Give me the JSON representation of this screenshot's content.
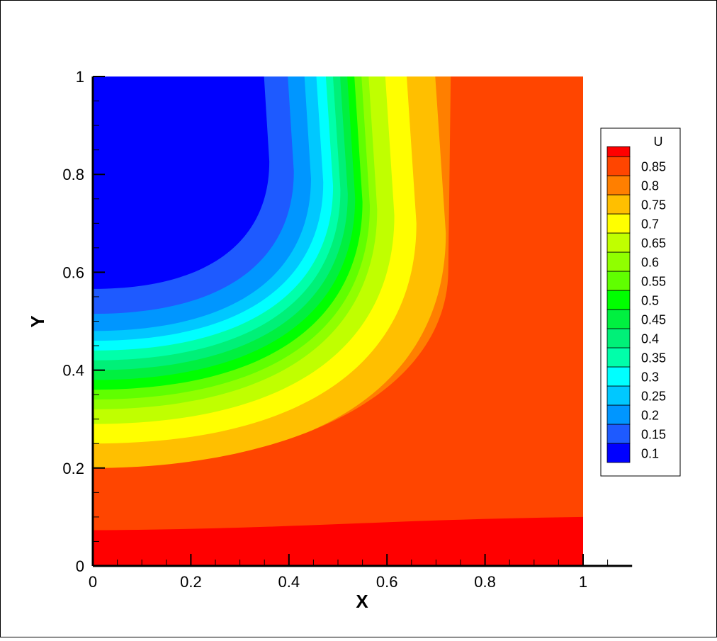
{
  "chart_data": {
    "type": "contour",
    "xlabel": "X",
    "ylabel": "Y",
    "xlim": [
      0,
      1.1
    ],
    "ylim": [
      0,
      1
    ],
    "xticks": [
      0,
      0.2,
      0.4,
      0.6,
      0.8,
      1
    ],
    "yticks": [
      0,
      0.2,
      0.4,
      0.6,
      0.8,
      1
    ],
    "xminorticks": [
      0.05,
      0.1,
      0.15,
      0.25,
      0.3,
      0.35,
      0.45,
      0.5,
      0.55,
      0.65,
      0.7,
      0.75,
      0.85,
      0.9,
      0.95,
      1.05
    ],
    "yminorticks": [
      0.05,
      0.1,
      0.15,
      0.25,
      0.3,
      0.35,
      0.45,
      0.5,
      0.55,
      0.65,
      0.7,
      0.75,
      0.85,
      0.9,
      0.95
    ],
    "legend_title": "U",
    "levels": [
      0.1,
      0.15,
      0.2,
      0.25,
      0.3,
      0.35,
      0.4,
      0.45,
      0.5,
      0.55,
      0.6,
      0.65,
      0.7,
      0.75,
      0.8,
      0.85
    ],
    "colors": [
      "#0000ff",
      "#1e5aff",
      "#0096ff",
      "#00c8ff",
      "#00ffff",
      "#00ffaa",
      "#00f078",
      "#00f040",
      "#00ff00",
      "#60ff00",
      "#90ff00",
      "#c0ff00",
      "#ffff00",
      "#ffbf00",
      "#ff7f00",
      "#ff4500",
      "#ff0000"
    ]
  }
}
